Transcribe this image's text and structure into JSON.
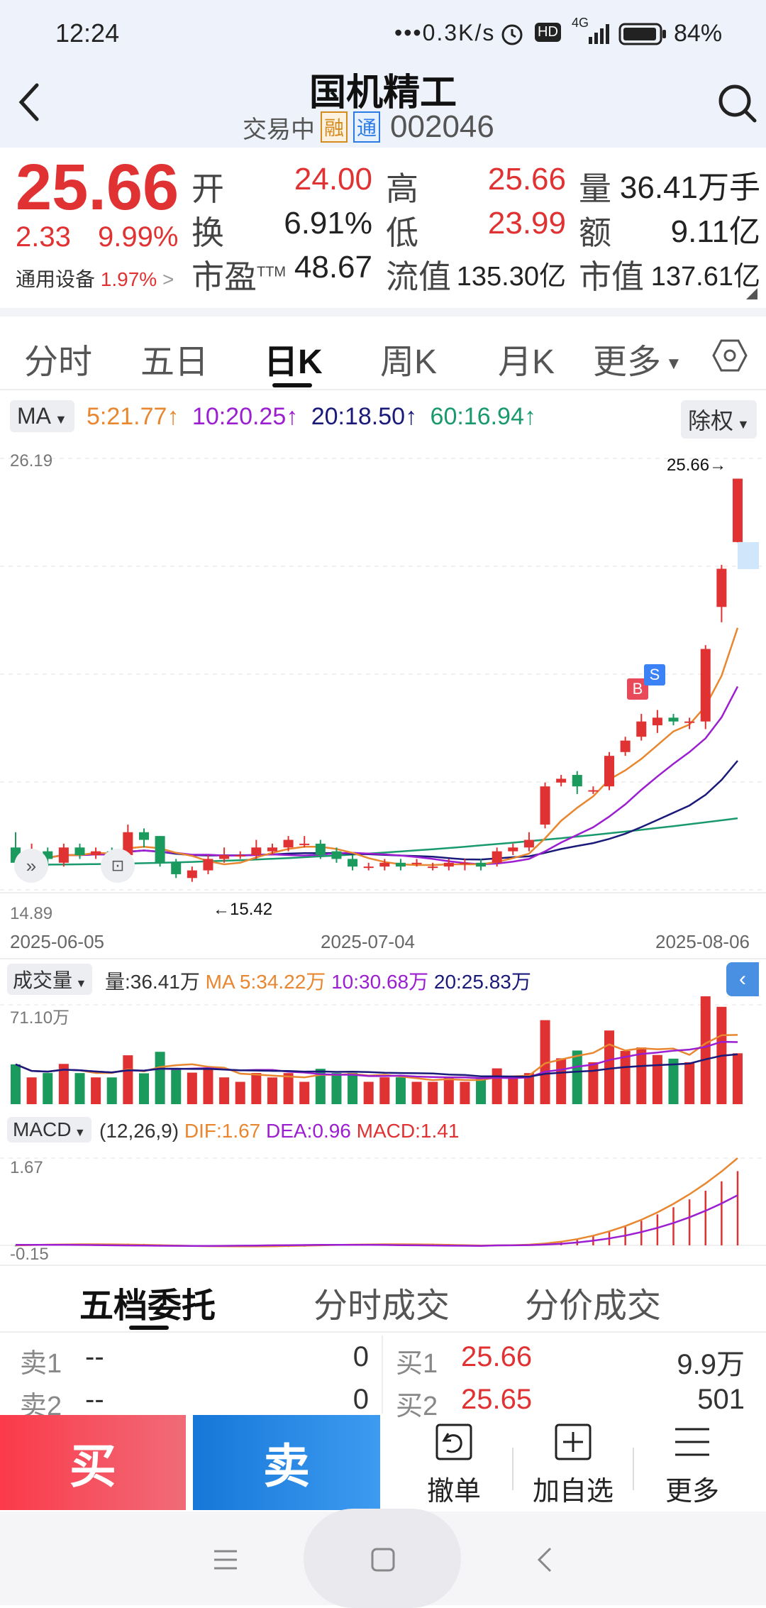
{
  "status_bar": {
    "time": "12:24",
    "net_speed": "0.3K/s",
    "battery": "84%",
    "signal": "4G",
    "hd": "HD"
  },
  "header": {
    "title": "国机精工",
    "trade_status": "交易中",
    "tag1": "融",
    "tag2": "通",
    "code": "002046"
  },
  "quote": {
    "price": "25.66",
    "change": "2.33",
    "change_pct": "9.99%",
    "sector": "通用设备",
    "sector_pct": "1.97%",
    "fields": {
      "open": {
        "label": "开",
        "value": "24.00"
      },
      "turnover": {
        "label": "换",
        "value": "6.91%"
      },
      "pe": {
        "label": "市盈",
        "sup": "TTM",
        "value": "48.67"
      },
      "high": {
        "label": "高",
        "value": "25.66"
      },
      "low": {
        "label": "低",
        "value": "23.99"
      },
      "float_cap": {
        "label": "流值",
        "value": "135.30亿"
      },
      "volume": {
        "label": "量",
        "value": "36.41万手"
      },
      "amount": {
        "label": "额",
        "value": "9.11亿"
      },
      "mkt_cap": {
        "label": "市值",
        "value": "137.61亿"
      }
    }
  },
  "tabs": [
    {
      "label": "分时"
    },
    {
      "label": "五日"
    },
    {
      "label": "日K",
      "active": true
    },
    {
      "label": "周K"
    },
    {
      "label": "月K"
    },
    {
      "label": "更多"
    }
  ],
  "ma_bar": {
    "selector": "MA",
    "ma5": "5:21.77",
    "ma10": "10:20.25",
    "ma20": "20:18.50",
    "ma60": "60:16.94",
    "adjust": "除权"
  },
  "main_chart": {
    "y_max": "26.19",
    "y_min": "14.89",
    "last_price_label": "25.66",
    "low_label": "15.42",
    "dates": [
      "2025-06-05",
      "2025-07-04",
      "2025-08-06"
    ],
    "marker_b": "B",
    "marker_s": "S"
  },
  "volume_bar": {
    "selector": "成交量",
    "vol": "量:36.41万",
    "ma_label": "MA",
    "ma5": "5:34.22万",
    "ma10": "10:30.68万",
    "ma20": "20:25.83万",
    "y_max": "71.10万"
  },
  "macd_bar": {
    "selector": "MACD",
    "params": "(12,26,9)",
    "dif": "DIF:1.67",
    "dea": "DEA:0.96",
    "macd": "MACD:1.41",
    "y_max": "1.67",
    "y_min": "-0.15"
  },
  "orderbook_tabs": [
    {
      "label": "五档委托",
      "active": true
    },
    {
      "label": "分时成交"
    },
    {
      "label": "分价成交"
    }
  ],
  "orderbook": {
    "sell": [
      {
        "label": "卖1",
        "price": "--",
        "vol": "0"
      },
      {
        "label": "卖2",
        "price": "--",
        "vol": "0"
      }
    ],
    "buy": [
      {
        "label": "买1",
        "price": "25.66",
        "vol": "9.9万"
      },
      {
        "label": "买2",
        "price": "25.65",
        "vol": "501"
      }
    ]
  },
  "actions": {
    "buy": "买",
    "sell": "卖",
    "cancel": "撤单",
    "add_watch": "加自选",
    "more": "更多"
  },
  "colors": {
    "up": "#e03232",
    "down": "#1a9a5c",
    "ma5": "#e8872f",
    "ma10": "#9b1fd1",
    "ma20": "#1a1a7a",
    "ma60": "#1a9a6c",
    "buy_btn": "#f5465a",
    "sell_btn": "#1e88e5"
  },
  "chart_data": {
    "type": "candlestick",
    "title": "",
    "x_dates_shown": [
      "2025-06-05",
      "2025-07-04",
      "2025-08-06"
    ],
    "ylim": [
      14.89,
      26.19
    ],
    "last_close": 25.66,
    "period_low": 15.42,
    "candles": [
      [
        16.0,
        15.6,
        16.4,
        15.5
      ],
      [
        15.8,
        15.9,
        16.1,
        15.6
      ],
      [
        15.9,
        15.7,
        16.0,
        15.5
      ],
      [
        15.6,
        16.0,
        16.1,
        15.5
      ],
      [
        16.0,
        15.8,
        16.1,
        15.7
      ],
      [
        15.8,
        15.9,
        16.0,
        15.7
      ],
      [
        15.9,
        15.8,
        16.0,
        15.7
      ],
      [
        15.8,
        16.4,
        16.6,
        15.7
      ],
      [
        16.4,
        16.2,
        16.5,
        16.0
      ],
      [
        16.3,
        15.6,
        16.3,
        15.5
      ],
      [
        15.6,
        15.3,
        15.7,
        15.2
      ],
      [
        15.2,
        15.4,
        15.5,
        15.1
      ],
      [
        15.4,
        15.7,
        15.8,
        15.3
      ],
      [
        15.7,
        15.8,
        16.0,
        15.6
      ],
      [
        15.8,
        15.8,
        15.9,
        15.7
      ],
      [
        15.8,
        16.0,
        16.2,
        15.7
      ],
      [
        15.9,
        16.0,
        16.1,
        15.8
      ],
      [
        16.0,
        16.2,
        16.3,
        15.9
      ],
      [
        16.1,
        16.1,
        16.3,
        16.0
      ],
      [
        16.1,
        15.8,
        16.2,
        15.7
      ],
      [
        15.9,
        15.7,
        16.0,
        15.6
      ],
      [
        15.7,
        15.5,
        15.8,
        15.4
      ],
      [
        15.5,
        15.5,
        15.6,
        15.4
      ],
      [
        15.5,
        15.6,
        15.7,
        15.4
      ],
      [
        15.6,
        15.5,
        15.7,
        15.4
      ],
      [
        15.6,
        15.6,
        15.7,
        15.5
      ],
      [
        15.5,
        15.5,
        15.6,
        15.4
      ],
      [
        15.5,
        15.6,
        15.7,
        15.4
      ],
      [
        15.6,
        15.6,
        15.7,
        15.4
      ],
      [
        15.6,
        15.5,
        15.7,
        15.4
      ],
      [
        15.6,
        15.9,
        16.0,
        15.5
      ],
      [
        15.9,
        16.0,
        16.1,
        15.8
      ],
      [
        16.0,
        16.2,
        16.4,
        15.9
      ],
      [
        16.6,
        17.6,
        17.7,
        16.5
      ],
      [
        17.7,
        17.8,
        17.9,
        17.6
      ],
      [
        17.9,
        17.6,
        18.0,
        17.4
      ],
      [
        17.5,
        17.5,
        17.6,
        17.4
      ],
      [
        17.6,
        18.4,
        18.5,
        17.5
      ],
      [
        18.5,
        18.8,
        18.9,
        18.4
      ],
      [
        18.9,
        19.3,
        19.5,
        18.8
      ],
      [
        19.2,
        19.4,
        19.6,
        19.0
      ],
      [
        19.4,
        19.3,
        19.5,
        19.2
      ],
      [
        19.3,
        19.3,
        19.4,
        19.1
      ],
      [
        19.3,
        21.2,
        21.3,
        19.1
      ],
      [
        22.3,
        23.3,
        23.4,
        21.9
      ],
      [
        24.0,
        25.66,
        25.66,
        23.99
      ]
    ]
  }
}
